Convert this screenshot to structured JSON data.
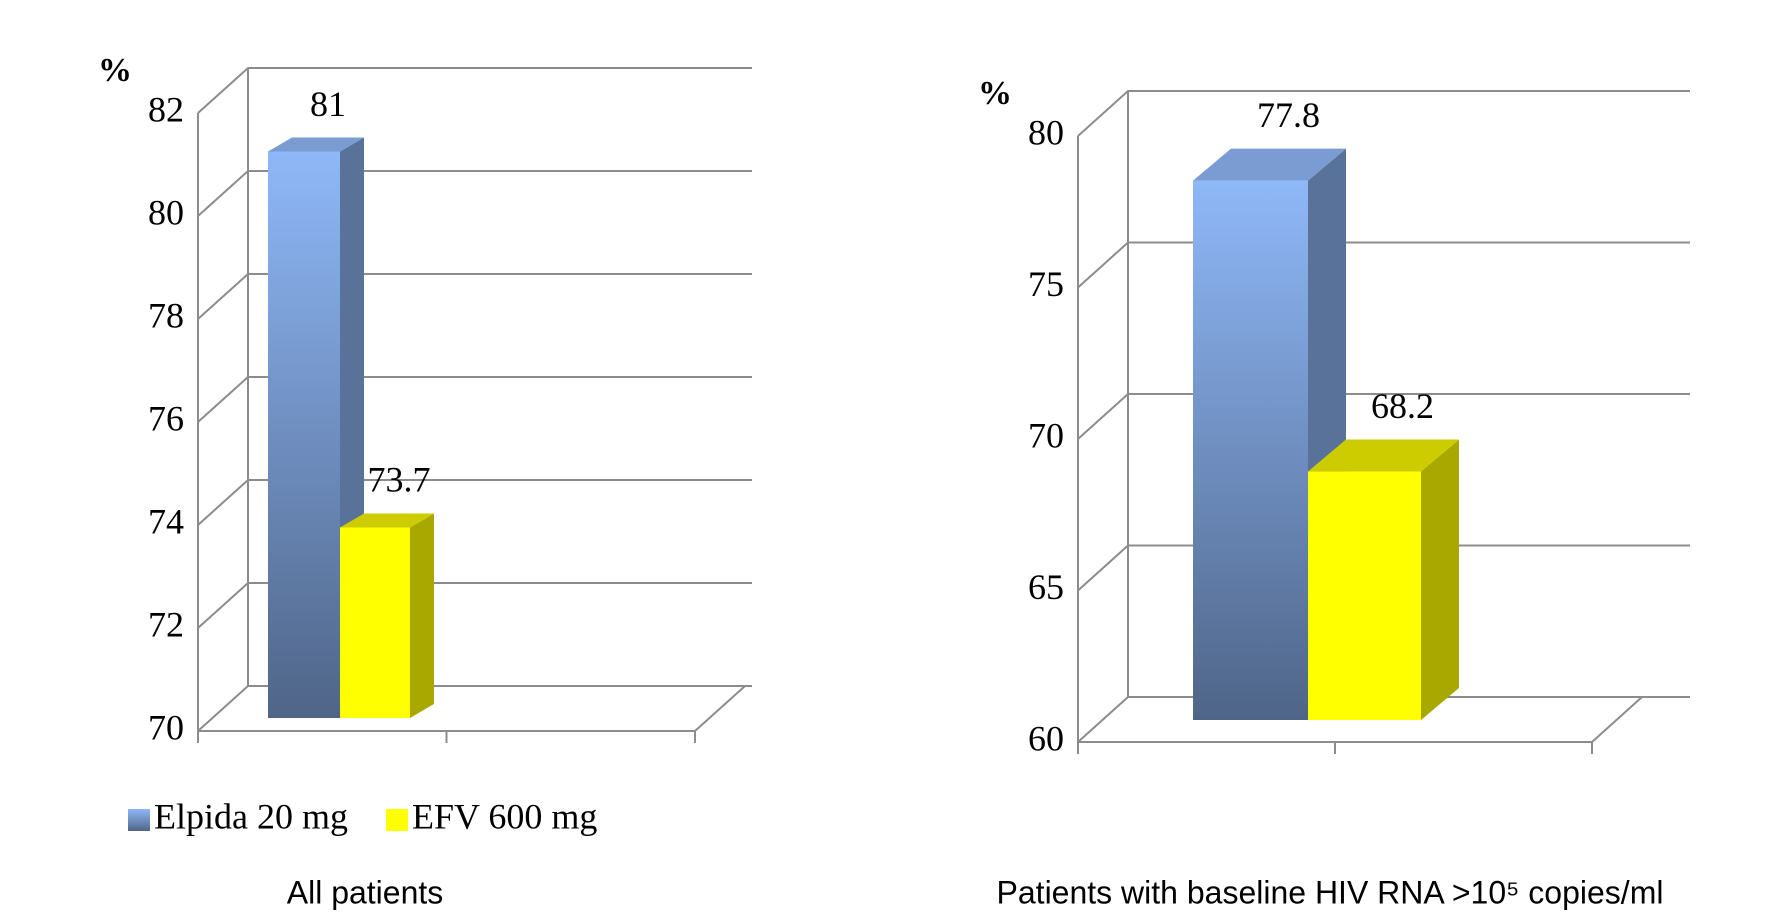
{
  "chart_data": [
    {
      "type": "bar3d",
      "y_label": "%",
      "caption": "All patients",
      "series": [
        {
          "name": "Elpida 20 mg",
          "color": "#8fb8f8",
          "values": [
            81
          ]
        },
        {
          "name": "EFV 600 mg",
          "color": "#ffff00",
          "values": [
            73.7
          ]
        }
      ],
      "ylim": [
        70,
        82
      ],
      "yticks": [
        70,
        72,
        74,
        76,
        78,
        80,
        82
      ],
      "grid": true,
      "legend": "bottom"
    },
    {
      "type": "bar3d",
      "y_label": "%",
      "caption": "Patients with baseline HIV RNA >10⁵ copies/ml",
      "series": [
        {
          "color": "#8fb8f8",
          "values": [
            77.8
          ]
        },
        {
          "color": "#ffff00",
          "values": [
            68.2
          ]
        }
      ],
      "ylim": [
        60,
        80
      ],
      "yticks": [
        60,
        65,
        70,
        75,
        80
      ],
      "grid": true
    }
  ]
}
